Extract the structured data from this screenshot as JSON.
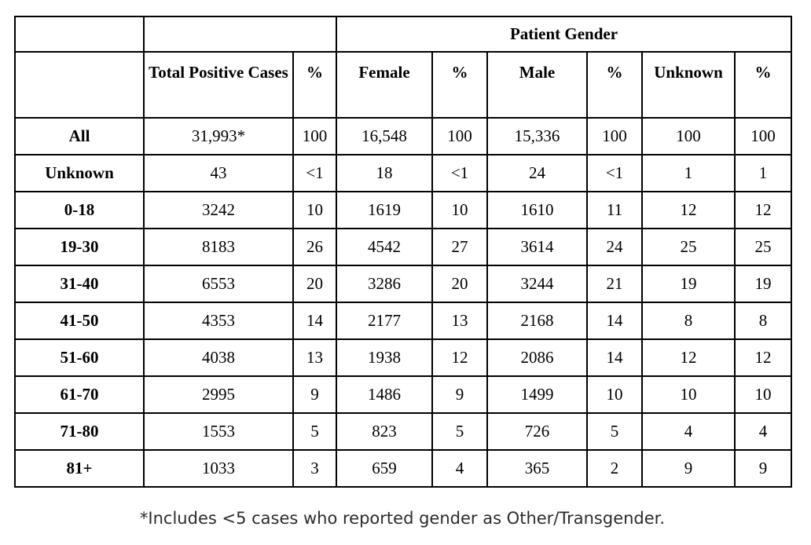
{
  "chart_data": {
    "type": "table",
    "group_header": "Patient Gender",
    "group_header_colspan": 6,
    "columns": [
      "",
      "Total Positive Cases",
      "%",
      "Female",
      "%",
      "Male",
      "%",
      "Unknown",
      "%"
    ],
    "rows": [
      {
        "label": "All",
        "values": [
          "31,993*",
          "100",
          "16,548",
          "100",
          "15,336",
          "100",
          "100",
          "100"
        ]
      },
      {
        "label": "Unknown",
        "values": [
          "43",
          "<1",
          "18",
          "<1",
          "24",
          "<1",
          "1",
          "1"
        ]
      },
      {
        "label": "0-18",
        "values": [
          "3242",
          "10",
          "1619",
          "10",
          "1610",
          "11",
          "12",
          "12"
        ]
      },
      {
        "label": "19-30",
        "values": [
          "8183",
          "26",
          "4542",
          "27",
          "3614",
          "24",
          "25",
          "25"
        ]
      },
      {
        "label": "31-40",
        "values": [
          "6553",
          "20",
          "3286",
          "20",
          "3244",
          "21",
          "19",
          "19"
        ]
      },
      {
        "label": "41-50",
        "values": [
          "4353",
          "14",
          "2177",
          "13",
          "2168",
          "14",
          "8",
          "8"
        ]
      },
      {
        "label": "51-60",
        "values": [
          "4038",
          "13",
          "1938",
          "12",
          "2086",
          "14",
          "12",
          "12"
        ]
      },
      {
        "label": "61-70",
        "values": [
          "2995",
          "9",
          "1486",
          "9",
          "1499",
          "10",
          "10",
          "10"
        ]
      },
      {
        "label": "71-80",
        "values": [
          "1553",
          "5",
          "823",
          "5",
          "726",
          "5",
          "4",
          "4"
        ]
      },
      {
        "label": "81+",
        "values": [
          "1033",
          "3",
          "659",
          "4",
          "365",
          "2",
          "9",
          "9"
        ]
      }
    ],
    "footnote": "*Includes <5 cases who reported gender as Other/Transgender."
  },
  "colors": {
    "border": "#000000",
    "text": "#000000",
    "footnote_text": "#2b2b2b",
    "background": "#ffffff"
  }
}
